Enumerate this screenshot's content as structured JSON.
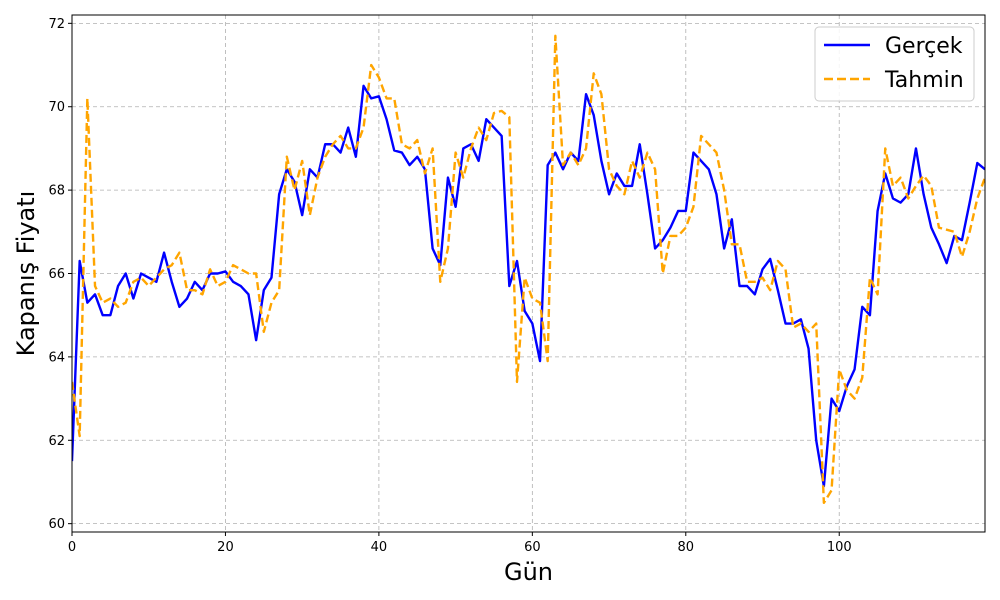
{
  "chart_data": {
    "type": "line",
    "title": "",
    "xlabel": "Gün",
    "ylabel": "Kapanış Fiyatı",
    "xlim": [
      0,
      119
    ],
    "ylim": [
      59.8,
      72.2
    ],
    "xticks": [
      0,
      20,
      40,
      60,
      80,
      100
    ],
    "yticks": [
      60,
      62,
      64,
      66,
      68,
      70,
      72
    ],
    "grid": true,
    "legend_position": "top-right",
    "series": [
      {
        "name": "Gerçek",
        "color": "#0000ff",
        "dash": "solid",
        "values": [
          61.5,
          66.3,
          65.3,
          65.5,
          65.0,
          65.0,
          65.7,
          66.0,
          65.4,
          66.0,
          65.9,
          65.8,
          66.5,
          65.8,
          65.2,
          65.4,
          65.8,
          65.6,
          66.0,
          66.0,
          66.05,
          65.8,
          65.7,
          65.5,
          64.4,
          65.6,
          65.9,
          67.9,
          68.5,
          68.2,
          67.4,
          68.5,
          68.3,
          69.1,
          69.1,
          68.9,
          69.5,
          68.8,
          70.5,
          70.2,
          70.25,
          69.7,
          68.95,
          68.9,
          68.6,
          68.8,
          68.5,
          66.6,
          66.2,
          68.3,
          67.6,
          69.0,
          69.1,
          68.7,
          69.7,
          69.5,
          69.3,
          65.7,
          66.3,
          65.1,
          64.8,
          63.9,
          68.6,
          68.9,
          68.5,
          68.9,
          68.7,
          70.3,
          69.8,
          68.7,
          67.9,
          68.4,
          68.1,
          68.1,
          69.1,
          67.9,
          66.6,
          66.8,
          67.1,
          67.5,
          67.5,
          68.9,
          68.7,
          68.5,
          67.9,
          66.6,
          67.3,
          65.7,
          65.7,
          65.5,
          66.1,
          66.35,
          65.6,
          64.8,
          64.8,
          64.9,
          64.2,
          62.0,
          60.9,
          63.0,
          62.7,
          63.3,
          63.7,
          65.2,
          65.0,
          67.5,
          68.4,
          67.8,
          67.7,
          67.9,
          69.0,
          67.9,
          67.1,
          66.7,
          66.25,
          66.9,
          66.8,
          67.7,
          68.65,
          68.5
        ]
      },
      {
        "name": "Tahmin",
        "color": "#ffa500",
        "dash": "dashed",
        "values": [
          63.4,
          62.1,
          70.2,
          65.7,
          65.3,
          65.4,
          65.2,
          65.3,
          65.8,
          65.9,
          65.7,
          65.9,
          66.1,
          66.2,
          66.5,
          65.6,
          65.6,
          65.5,
          66.1,
          65.7,
          65.8,
          66.2,
          66.1,
          66.0,
          66.0,
          64.6,
          65.3,
          65.6,
          68.8,
          68.0,
          68.7,
          67.4,
          68.3,
          68.8,
          69.1,
          69.3,
          69.0,
          69.0,
          69.5,
          71.0,
          70.7,
          70.2,
          70.2,
          69.1,
          69.0,
          69.2,
          68.4,
          69.0,
          65.8,
          66.6,
          68.9,
          68.3,
          69.0,
          69.5,
          69.2,
          69.85,
          69.9,
          69.75,
          63.4,
          65.9,
          65.4,
          65.3,
          63.9,
          71.7,
          68.6,
          68.9,
          68.6,
          69.0,
          70.8,
          70.3,
          68.5,
          68.1,
          67.9,
          68.7,
          68.3,
          68.9,
          68.5,
          66.0,
          66.9,
          66.9,
          67.1,
          67.6,
          69.3,
          69.1,
          68.9,
          68.0,
          66.7,
          66.7,
          65.8,
          65.8,
          65.9,
          65.6,
          66.3,
          66.1,
          64.7,
          64.8,
          64.6,
          64.8,
          60.5,
          60.8,
          63.7,
          63.2,
          63.0,
          63.5,
          65.9,
          65.5,
          69.0,
          68.1,
          68.3,
          67.8,
          68.1,
          68.35,
          68.1,
          67.1,
          67.05,
          67.0,
          66.4,
          67.0,
          67.8,
          68.3
        ]
      }
    ]
  }
}
